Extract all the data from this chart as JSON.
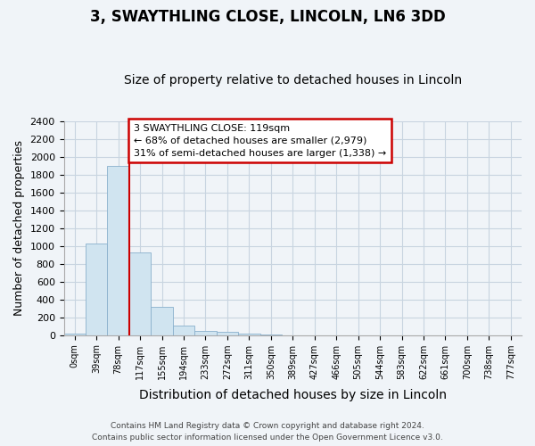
{
  "title": "3, SWAYTHLING CLOSE, LINCOLN, LN6 3DD",
  "subtitle": "Size of property relative to detached houses in Lincoln",
  "xlabel": "Distribution of detached houses by size in Lincoln",
  "ylabel": "Number of detached properties",
  "footer1": "Contains HM Land Registry data © Crown copyright and database right 2024.",
  "footer2": "Contains public sector information licensed under the Open Government Licence v3.0.",
  "bin_labels": [
    "0sqm",
    "39sqm",
    "78sqm",
    "117sqm",
    "155sqm",
    "194sqm",
    "233sqm",
    "272sqm",
    "311sqm",
    "350sqm",
    "389sqm",
    "427sqm",
    "466sqm",
    "505sqm",
    "544sqm",
    "583sqm",
    "622sqm",
    "661sqm",
    "700sqm",
    "738sqm",
    "777sqm"
  ],
  "bar_values": [
    20,
    1030,
    1900,
    930,
    320,
    105,
    50,
    32,
    20,
    8,
    0,
    0,
    0,
    0,
    0,
    0,
    0,
    0,
    0,
    0,
    0
  ],
  "bar_color": "#d0e4f0",
  "bar_edge_color": "#8ab0cc",
  "ylim": [
    0,
    2400
  ],
  "yticks": [
    0,
    200,
    400,
    600,
    800,
    1000,
    1200,
    1400,
    1600,
    1800,
    2000,
    2200,
    2400
  ],
  "annotation_text1": "3 SWAYTHLING CLOSE: 119sqm",
  "annotation_text2": "← 68% of detached houses are smaller (2,979)",
  "annotation_text3": "31% of semi-detached houses are larger (1,338) →",
  "annotation_box_color": "#ffffff",
  "annotation_box_edge_color": "#cc0000",
  "red_line_color": "#cc0000",
  "grid_color": "#c8d4e0",
  "background_color": "#f0f4f8",
  "plot_bg_color": "#f0f4f8",
  "title_fontsize": 12,
  "subtitle_fontsize": 10,
  "ylabel_fontsize": 9,
  "xlabel_fontsize": 10
}
